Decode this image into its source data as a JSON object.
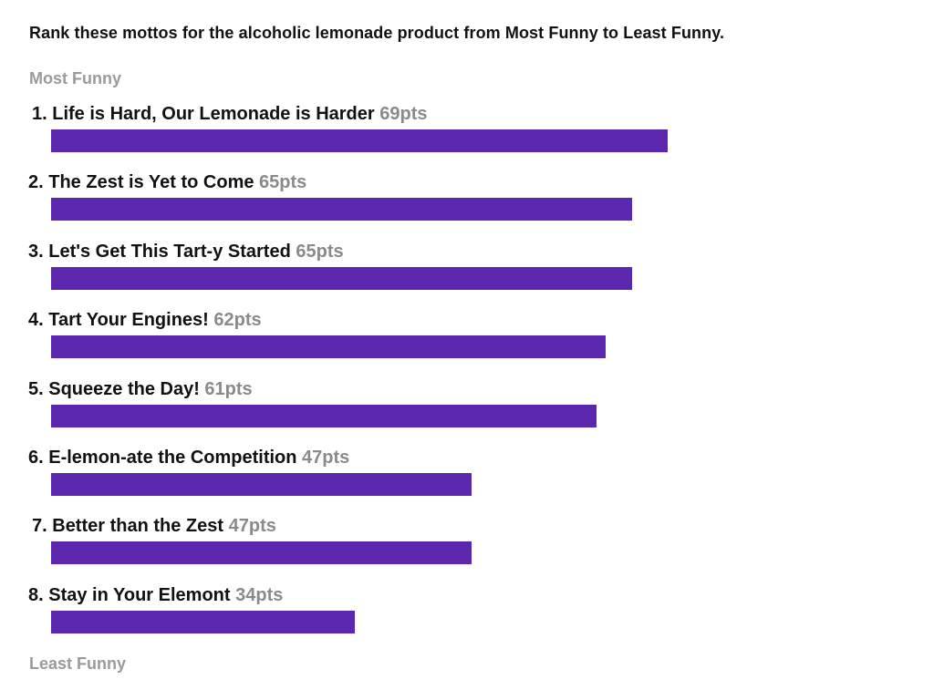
{
  "question": "Rank these mottos for the alcoholic lemonade product from Most Funny to Least Funny.",
  "scale": {
    "top_label": "Most Funny",
    "bottom_label": "Least Funny"
  },
  "colors": {
    "bar": "#5b27af",
    "points_text": "#8a8a8a",
    "scale_text": "#9a9a9a"
  },
  "chart_data": {
    "type": "bar",
    "orientation": "horizontal",
    "categories": [
      "Life is Hard, Our Lemonade is Harder",
      "The Zest is Yet to Come",
      "Let's Get This Tart-y Started",
      "Tart Your Engines!",
      "Squeeze the Day!",
      "E-lemon-ate the Competition",
      "Better than the Zest",
      "Stay in Your Elemont"
    ],
    "ranks": [
      "1.",
      "2.",
      "3.",
      "4.",
      "5.",
      "6.",
      "7.",
      "8."
    ],
    "values": [
      69,
      65,
      65,
      62,
      61,
      47,
      47,
      34
    ],
    "value_labels": [
      "69pts",
      "65pts",
      "65pts",
      "62pts",
      "61pts",
      "47pts",
      "47pts",
      "34pts"
    ],
    "unit": "pts",
    "grid": false,
    "legend": "none"
  }
}
